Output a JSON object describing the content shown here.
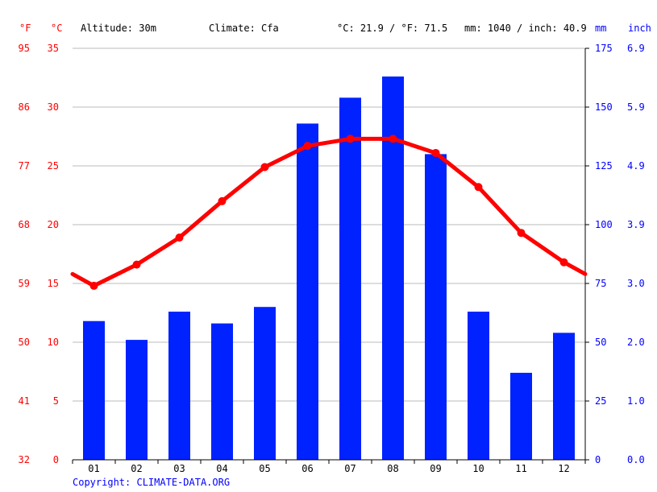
{
  "header": {
    "unit_f": "°F",
    "unit_c": "°C",
    "altitude": "Altitude: 30m",
    "climate": "Climate: Cfa",
    "temp_avg": "°C: 21.9 / °F: 71.5",
    "precip_total": "mm: 1040 / inch: 40.9",
    "unit_mm": "mm",
    "unit_inch": "inch"
  },
  "copyright": "Copyright: CLIMATE-DATA.ORG",
  "colors": {
    "temperature": "#ff0000",
    "precipitation": "#0022ff",
    "grid": "#bbbbbb",
    "axis": "#000000"
  },
  "chart_data": {
    "type": "bar+line",
    "categories": [
      "01",
      "02",
      "03",
      "04",
      "05",
      "06",
      "07",
      "08",
      "09",
      "10",
      "11",
      "12"
    ],
    "series": [
      {
        "kind": "bar",
        "axis": "right",
        "values": [
          59,
          51,
          63,
          58,
          65,
          143,
          154,
          163,
          130,
          63,
          37,
          54
        ]
      },
      {
        "kind": "line",
        "axis": "left",
        "values": [
          14.8,
          16.6,
          18.9,
          22.0,
          24.9,
          26.7,
          27.3,
          27.3,
          26.1,
          23.2,
          19.3,
          16.8
        ]
      }
    ],
    "line_edge_values": [
      15.8,
      15.8
    ],
    "y_left_c": {
      "min": 0,
      "max": 35,
      "ticks": [
        "0",
        "5",
        "10",
        "15",
        "20",
        "25",
        "30",
        "35"
      ]
    },
    "y_left_f": {
      "ticks": [
        "32",
        "41",
        "50",
        "59",
        "68",
        "77",
        "86",
        "95"
      ]
    },
    "y_right_mm": {
      "min": 0,
      "max": 175,
      "ticks": [
        "0",
        "25",
        "50",
        "75",
        "100",
        "125",
        "150",
        "175"
      ]
    },
    "y_right_inch": {
      "ticks": [
        "0.0",
        "1.0",
        "2.0",
        "3.0",
        "3.9",
        "4.9",
        "5.9",
        "6.9"
      ]
    },
    "grid": true
  }
}
